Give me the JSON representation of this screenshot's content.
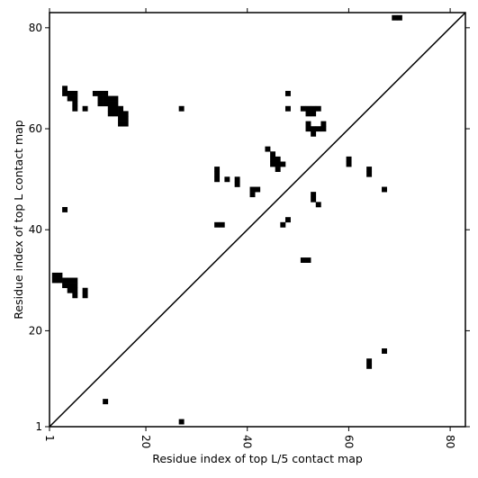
{
  "chart_data": {
    "type": "heatmap",
    "subtype": "contact-map",
    "xlabel": "Residue index of top L/5 contact map",
    "ylabel": "Residue index of top L contact map",
    "xlim": [
      1,
      83
    ],
    "ylim": [
      1,
      83
    ],
    "xticks": [
      1,
      20,
      40,
      60,
      80
    ],
    "yticks": [
      1,
      20,
      40,
      60,
      80
    ],
    "xtick_rotation": -90,
    "grid": false,
    "diagonal_line": true,
    "color": "#000000",
    "lower_triangle_contacts": [
      [
        12,
        6
      ],
      [
        27,
        2
      ],
      [
        64,
        13
      ],
      [
        64,
        14
      ],
      [
        67,
        16
      ]
    ],
    "upper_triangle_contacts": [
      [
        69,
        82
      ],
      [
        70,
        82
      ],
      [
        4,
        68
      ],
      [
        4,
        67
      ],
      [
        5,
        67
      ],
      [
        6,
        67
      ],
      [
        6,
        66
      ],
      [
        5,
        66
      ],
      [
        6,
        65
      ],
      [
        6,
        64
      ],
      [
        8,
        64
      ],
      [
        10,
        67
      ],
      [
        11,
        67
      ],
      [
        12,
        67
      ],
      [
        11,
        66
      ],
      [
        12,
        66
      ],
      [
        13,
        66
      ],
      [
        14,
        66
      ],
      [
        11,
        65
      ],
      [
        12,
        65
      ],
      [
        13,
        65
      ],
      [
        14,
        65
      ],
      [
        13,
        64
      ],
      [
        14,
        64
      ],
      [
        15,
        64
      ],
      [
        13,
        63
      ],
      [
        14,
        63
      ],
      [
        15,
        63
      ],
      [
        16,
        63
      ],
      [
        15,
        62
      ],
      [
        16,
        62
      ],
      [
        15,
        61
      ],
      [
        16,
        61
      ],
      [
        27,
        64
      ],
      [
        48,
        67
      ],
      [
        48,
        64
      ],
      [
        51,
        64
      ],
      [
        52,
        64
      ],
      [
        53,
        64
      ],
      [
        54,
        64
      ],
      [
        52,
        63
      ],
      [
        53,
        63
      ],
      [
        52,
        61
      ],
      [
        52,
        60
      ],
      [
        53,
        60
      ],
      [
        54,
        60
      ],
      [
        53,
        59
      ],
      [
        55,
        61
      ],
      [
        55,
        60
      ],
      [
        44,
        56
      ],
      [
        45,
        55
      ],
      [
        45,
        54
      ],
      [
        46,
        54
      ],
      [
        45,
        53
      ],
      [
        46,
        53
      ],
      [
        47,
        53
      ],
      [
        46,
        52
      ],
      [
        60,
        54
      ],
      [
        60,
        53
      ],
      [
        64,
        52
      ],
      [
        64,
        51
      ],
      [
        34,
        52
      ],
      [
        34,
        51
      ],
      [
        34,
        50
      ],
      [
        36,
        50
      ],
      [
        38,
        50
      ],
      [
        38,
        49
      ],
      [
        41,
        48
      ],
      [
        42,
        48
      ],
      [
        41,
        47
      ],
      [
        53,
        47
      ],
      [
        53,
        46
      ],
      [
        54,
        45
      ],
      [
        67,
        48
      ],
      [
        4,
        44
      ],
      [
        48,
        42
      ],
      [
        47,
        41
      ],
      [
        34,
        41
      ],
      [
        35,
        41
      ],
      [
        51,
        34
      ],
      [
        52,
        34
      ],
      [
        2,
        31
      ],
      [
        3,
        31
      ],
      [
        2,
        30
      ],
      [
        3,
        30
      ],
      [
        4,
        30
      ],
      [
        5,
        30
      ],
      [
        6,
        30
      ],
      [
        4,
        29
      ],
      [
        5,
        29
      ],
      [
        6,
        29
      ],
      [
        5,
        28
      ],
      [
        6,
        28
      ],
      [
        6,
        27
      ],
      [
        8,
        28
      ],
      [
        8,
        27
      ]
    ]
  }
}
